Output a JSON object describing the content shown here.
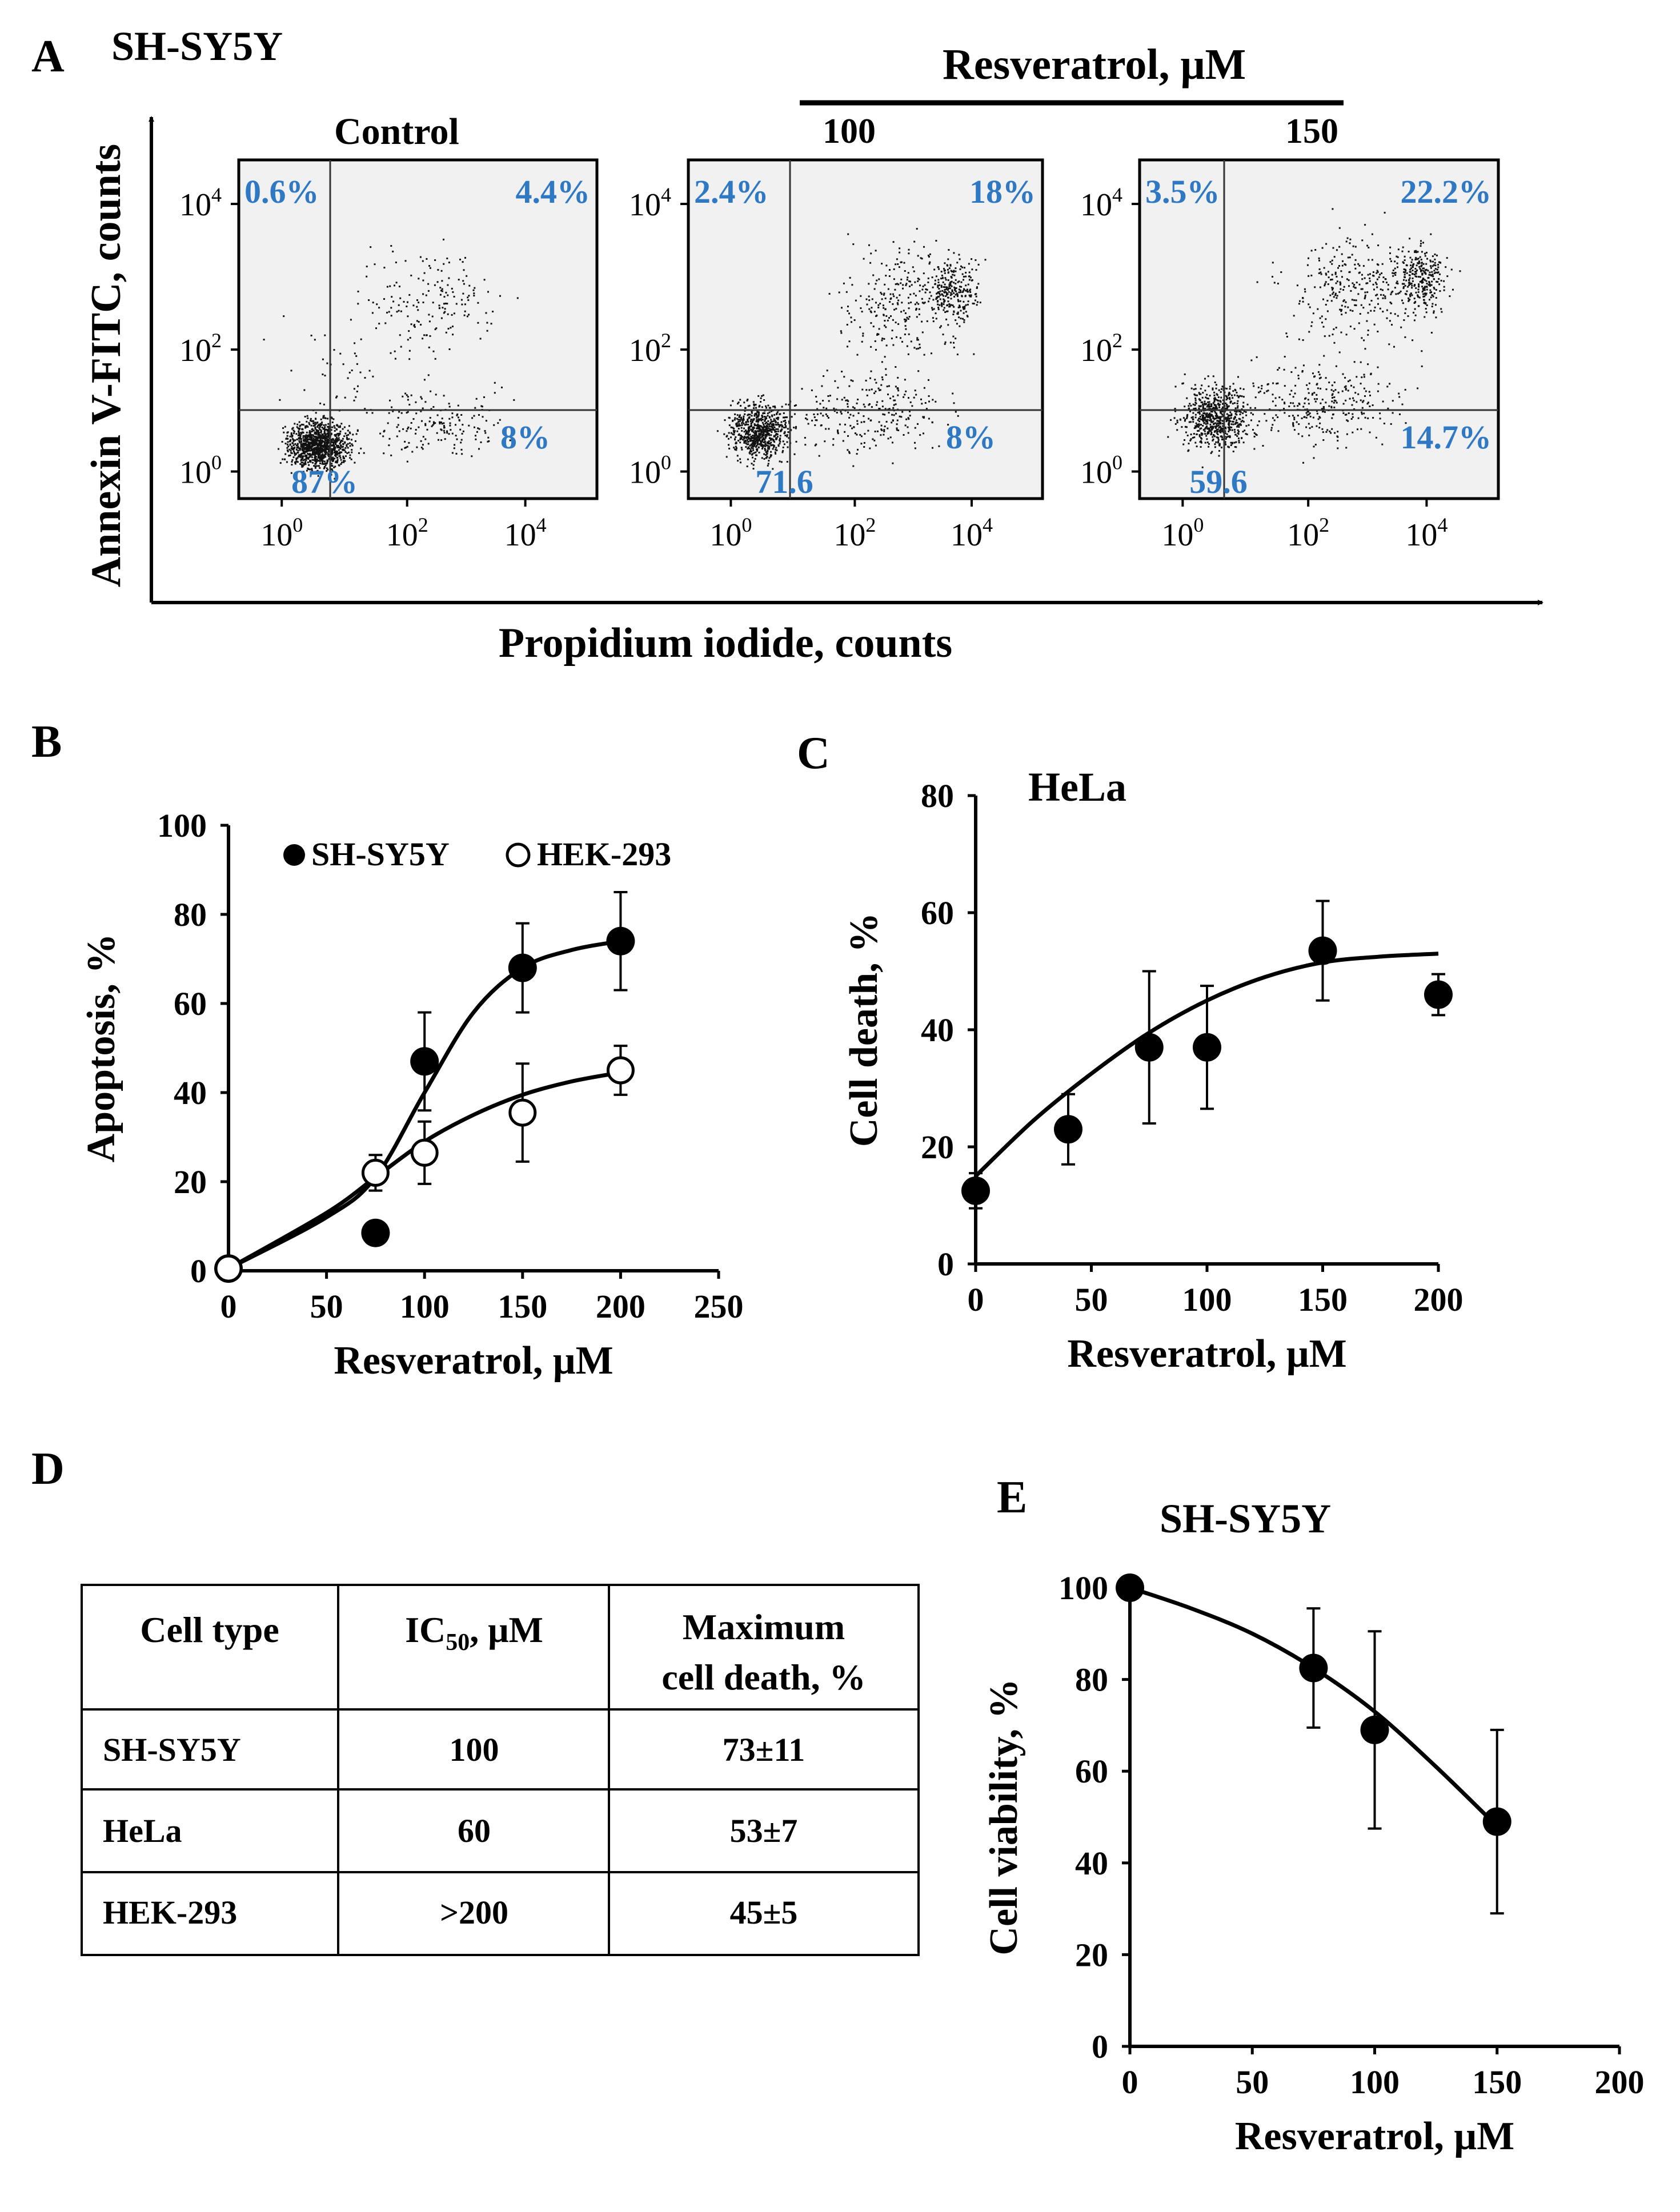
{
  "panel_letters": {
    "a": "A",
    "b": "B",
    "c": "C",
    "d": "D",
    "e": "E"
  },
  "colors": {
    "quadrant_label": "#2f78c4",
    "plot_bg": "#f1f1f1"
  },
  "chart_data": [
    {
      "panel": "A",
      "type": "scatter",
      "title": "SH-SY5Y",
      "treatment_label": "Resveratrol, μM",
      "xlabel": "Propidium iodide, counts",
      "ylabel": "Annexin V-FITC, counts",
      "x_ticks": [
        {
          "base": "10",
          "exp": "0"
        },
        {
          "base": "10",
          "exp": "2"
        },
        {
          "base": "10",
          "exp": "4"
        }
      ],
      "y_ticks": [
        {
          "base": "10",
          "exp": "0"
        },
        {
          "base": "10",
          "exp": "2"
        },
        {
          "base": "10",
          "exp": "4"
        }
      ],
      "plots": [
        {
          "name": "Control",
          "ul": "0.6%",
          "ur": "4.4%",
          "lr": "8%",
          "ll": "87%"
        },
        {
          "name": "100",
          "ul": "2.4%",
          "ur": "18%",
          "lr": "8%",
          "ll": "71.6"
        },
        {
          "name": "150",
          "ul": "3.5%",
          "ur": "22.2%",
          "lr": "14.7%",
          "ll": "59.6"
        }
      ]
    },
    {
      "panel": "B",
      "type": "scatter",
      "xlabel": "Resveratrol, μM",
      "ylabel": "Apoptosis, %",
      "xlim": [
        0,
        250
      ],
      "ylim": [
        0,
        100
      ],
      "xticks": [
        "0",
        "50",
        "100",
        "150",
        "200",
        "250"
      ],
      "yticks": [
        "0",
        "20",
        "40",
        "60",
        "80",
        "100"
      ],
      "series": [
        {
          "name": "SH-SY5Y",
          "marker": "filled",
          "x": [
            0,
            75,
            100,
            150,
            200
          ],
          "y": [
            0.5,
            8.5,
            47,
            68,
            74
          ],
          "err": [
            0,
            0,
            11,
            10,
            11
          ]
        },
        {
          "name": "HEK-293",
          "marker": "open",
          "x": [
            0,
            75,
            100,
            150,
            200
          ],
          "y": [
            0.5,
            22,
            26.5,
            35.5,
            45
          ],
          "err": [
            0,
            4,
            7,
            11,
            5.5
          ]
        }
      ],
      "fits": {
        "SH-SY5Y": {
          "x": [
            0,
            50,
            75,
            100,
            125,
            150,
            175,
            200
          ],
          "y": [
            0.5,
            12,
            21,
            40,
            58,
            68,
            72,
            74
          ]
        },
        "HEK-293": {
          "x": [
            0,
            50,
            75,
            100,
            125,
            150,
            175,
            200
          ],
          "y": [
            0.5,
            13,
            21,
            29,
            35,
            39.5,
            42.5,
            44.5
          ]
        }
      }
    },
    {
      "panel": "C",
      "type": "scatter",
      "title": "HeLa",
      "xlabel": "Resveratrol, μM",
      "ylabel": "Cell death, %",
      "xlim": [
        0,
        200
      ],
      "ylim": [
        0,
        80
      ],
      "xticks": [
        "0",
        "50",
        "100",
        "150",
        "200"
      ],
      "yticks": [
        "0",
        "20",
        "40",
        "60",
        "80"
      ],
      "series": [
        {
          "name": "HeLa",
          "marker": "filled",
          "x": [
            0,
            40,
            75,
            100,
            150,
            200
          ],
          "y": [
            12.5,
            23,
            37,
            37,
            53.5,
            46
          ],
          "err": [
            3,
            6,
            13,
            10.5,
            8.5,
            3.5
          ]
        }
      ],
      "fits": {
        "HeLa": {
          "x": [
            0,
            25,
            50,
            75,
            100,
            125,
            150,
            175,
            200
          ],
          "y": [
            15,
            24.5,
            32.5,
            39.5,
            45,
            49,
            51.5,
            52.5,
            53
          ]
        }
      }
    },
    {
      "panel": "D",
      "type": "table",
      "header": [
        "Cell type",
        "IC",
        "50",
        ", μM",
        "Maximum",
        "cell death, %"
      ],
      "rows": [
        {
          "cell": "SH-SY5Y",
          "ic50": "100",
          "max": "73±11"
        },
        {
          "cell": "HeLa",
          "ic50": "60",
          "max": "53±7"
        },
        {
          "cell": "HEK-293",
          "ic50": ">200",
          "max": "45±5"
        }
      ]
    },
    {
      "panel": "E",
      "type": "scatter",
      "title": "SH-SY5Y",
      "xlabel": "Resveratrol, μM",
      "ylabel": "Cell viability, %",
      "xlim": [
        0,
        200
      ],
      "ylim": [
        0,
        100
      ],
      "xticks": [
        "0",
        "50",
        "100",
        "150",
        "200"
      ],
      "yticks": [
        "0",
        "20",
        "40",
        "60",
        "80",
        "100"
      ],
      "series": [
        {
          "name": "SH-SY5Y",
          "marker": "filled",
          "x": [
            0,
            75,
            100,
            150
          ],
          "y": [
            100,
            82.5,
            69,
            49
          ],
          "err": [
            0,
            13,
            21.5,
            20
          ]
        }
      ],
      "fits": {
        "SH-SY5Y": {
          "x": [
            0,
            25,
            50,
            75,
            100,
            125,
            150
          ],
          "y": [
            100,
            95.5,
            90,
            82.5,
            73,
            61,
            48
          ]
        }
      }
    }
  ]
}
